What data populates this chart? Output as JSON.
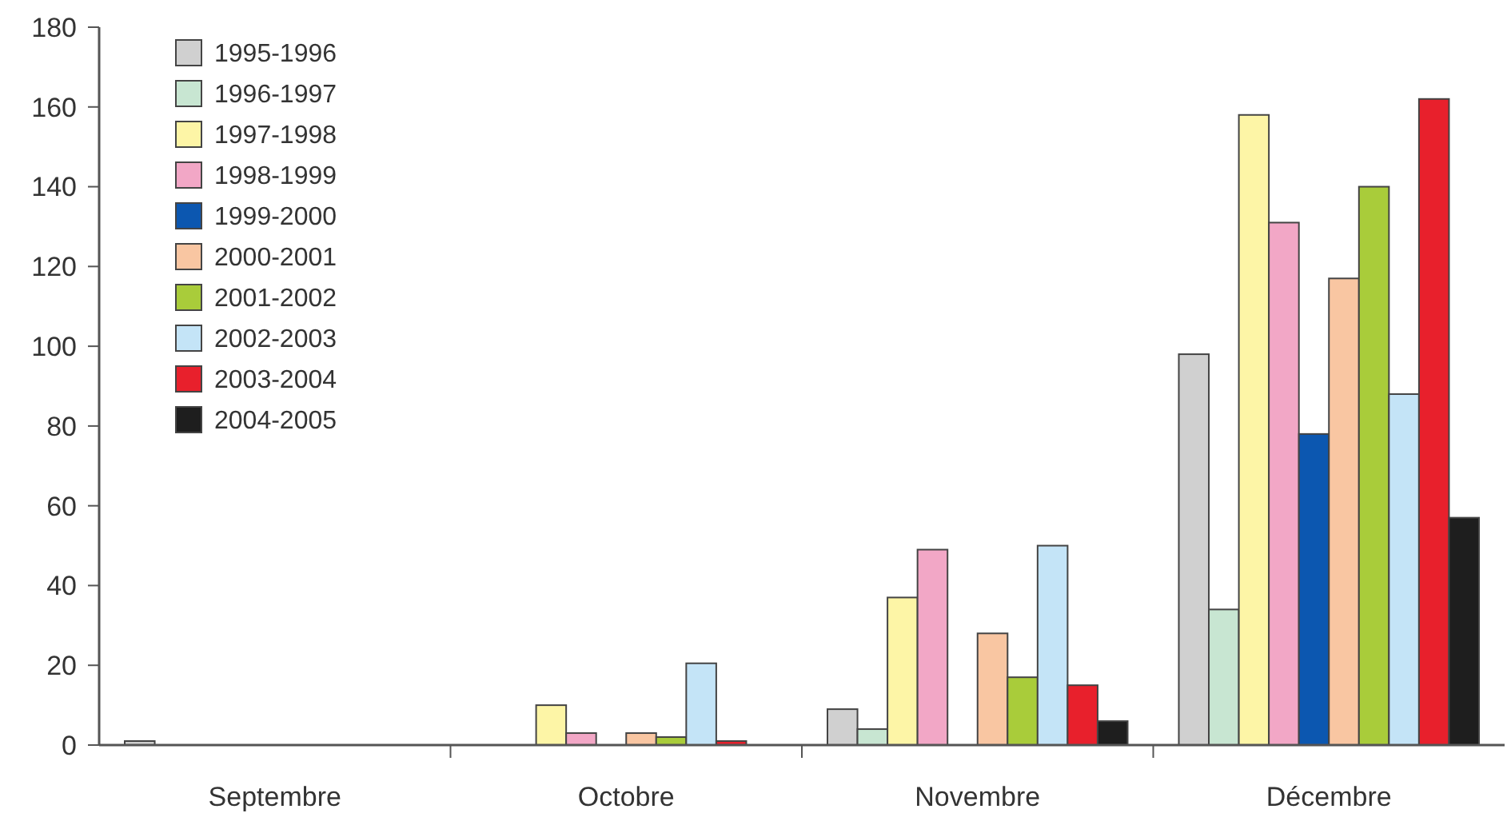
{
  "chart_data": {
    "type": "bar",
    "categories": [
      "Septembre",
      "Octobre",
      "Novembre",
      "Décembre"
    ],
    "series": [
      {
        "name": "1995-1996",
        "color": "#d0d0d0",
        "values": [
          1,
          0,
          9,
          98
        ]
      },
      {
        "name": "1996-1997",
        "color": "#c8e6d2",
        "values": [
          0,
          0,
          4,
          34
        ]
      },
      {
        "name": "1997-1998",
        "color": "#fdf5a6",
        "values": [
          0,
          10,
          37,
          158
        ]
      },
      {
        "name": "1998-1999",
        "color": "#f2a7c6",
        "values": [
          0,
          3,
          49,
          131
        ]
      },
      {
        "name": "1999-2000",
        "color": "#0c57b0",
        "values": [
          0,
          0,
          0,
          78
        ]
      },
      {
        "name": "2000-2001",
        "color": "#f9c6a2",
        "values": [
          0,
          3,
          28,
          117
        ]
      },
      {
        "name": "2001-2002",
        "color": "#a9cc3a",
        "values": [
          0,
          2,
          17,
          140
        ]
      },
      {
        "name": "2002-2003",
        "color": "#c4e4f7",
        "values": [
          0,
          20.5,
          50,
          88
        ]
      },
      {
        "name": "2003-2004",
        "color": "#e8202c",
        "values": [
          0,
          1,
          15,
          162
        ]
      },
      {
        "name": "2004-2005",
        "color": "#1e1e1e",
        "values": [
          0,
          0,
          6,
          57
        ]
      }
    ],
    "ylim": [
      0,
      180
    ],
    "yticks": [
      0,
      20,
      40,
      60,
      80,
      100,
      120,
      140,
      160,
      180
    ],
    "legend": "top left"
  }
}
